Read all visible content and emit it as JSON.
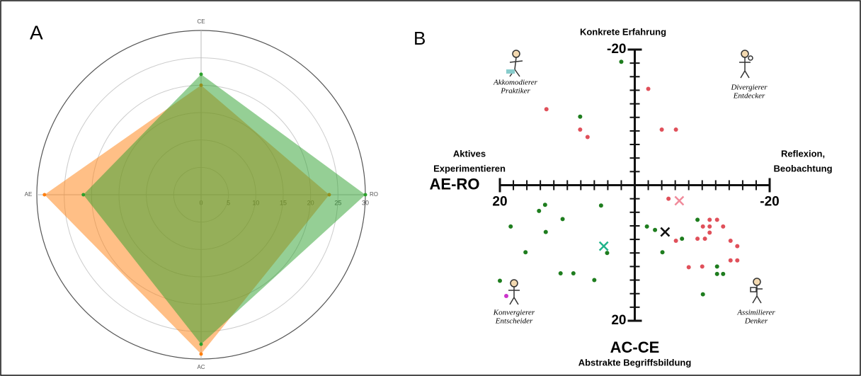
{
  "chart_data": [
    {
      "type": "radar",
      "title": "A",
      "categories": [
        "CE",
        "RO",
        "AC",
        "AE"
      ],
      "rlim": [
        0,
        30
      ],
      "rticks": [
        0,
        5,
        10,
        15,
        20,
        25,
        30
      ],
      "grid": true,
      "series": [
        {
          "color": "#ff7f0e",
          "values": [
            20,
            23.4,
            29.1,
            28.6
          ]
        },
        {
          "color": "#2ca02c",
          "values": [
            22,
            30,
            27.3,
            21.5
          ]
        }
      ]
    },
    {
      "type": "scatter",
      "title": "B",
      "xlabel": "AE-RO",
      "ylabel": "AC-CE",
      "top_label": "Konkrete Erfahrung",
      "bottom_label": "Abstrakte Begriffsbildung",
      "left_label": [
        "Aktives",
        "Experimentieren"
      ],
      "right_label": [
        "Reflexion,",
        "Beobachtung"
      ],
      "quadrants": [
        [
          "Akkomodierer",
          "Praktiker"
        ],
        [
          "Divergierer",
          "Entdecker"
        ],
        [
          "Konvergierer",
          "Entscheider"
        ],
        [
          "Assimilierer",
          "Denker"
        ]
      ],
      "xlim": [
        20,
        -20
      ],
      "ylim": [
        -20,
        20
      ],
      "xticks": [
        20,
        -20
      ],
      "yticks": [
        -20,
        20
      ],
      "xminor": [
        18,
        16,
        14,
        12,
        10,
        8,
        6,
        4,
        2,
        -2,
        -4,
        -6,
        -8,
        -10,
        -12,
        -14,
        -16,
        -18
      ],
      "yminor": [
        -18,
        -16,
        -14,
        -12,
        -10,
        -8,
        -6,
        -4,
        -2,
        2,
        4,
        6,
        8,
        10,
        12,
        14,
        16,
        18
      ],
      "series": [
        {
          "color": "#1e7d1e",
          "marker": "o",
          "x": [
            2.0,
            8.1,
            13.3,
            14.2,
            5.0,
            18.4,
            10.7,
            13.2,
            -1.8,
            -3.0,
            -7.0,
            16.2,
            4.1,
            -4.1,
            11.0,
            9.1,
            6.0,
            20.0,
            -9.3,
            -12.2,
            -13.1,
            -12.2,
            -10.1
          ],
          "y": [
            -18.2,
            -10.1,
            2.9,
            3.8,
            3.0,
            6.1,
            5.0,
            6.9,
            6.1,
            6.6,
            7.9,
            9.9,
            10.0,
            9.9,
            13.0,
            13.0,
            14.0,
            14.1,
            5.1,
            12.0,
            13.1,
            13.1,
            16.1
          ]
        },
        {
          "color": "#e0505a",
          "marker": "o",
          "x": [
            -2.0,
            13.1,
            8.1,
            7.0,
            -4.0,
            -6.1,
            -5.0,
            -11.1,
            -12.2,
            -10.1,
            -11.1,
            -11.1,
            -13.1,
            -6.1,
            -9.3,
            -10.4,
            -14.2,
            -15.2,
            -14.2,
            -15.2,
            -8.0,
            -10.0
          ],
          "y": [
            -14.2,
            -11.2,
            -8.2,
            -7.1,
            -8.2,
            -8.2,
            2.0,
            5.1,
            5.1,
            6.1,
            6.1,
            7.0,
            6.1,
            8.2,
            7.9,
            7.9,
            8.2,
            9.0,
            11.1,
            11.1,
            12.1,
            12.0
          ]
        },
        {
          "color": "#111111",
          "marker": "x",
          "x": [
            -4.5
          ],
          "y": [
            6.9
          ]
        },
        {
          "color": "#1fb38a",
          "marker": "x",
          "x": [
            4.6
          ],
          "y": [
            9.0
          ]
        },
        {
          "color": "#f08a9a",
          "marker": "x",
          "x": [
            -6.6
          ],
          "y": [
            2.3
          ]
        }
      ]
    }
  ]
}
